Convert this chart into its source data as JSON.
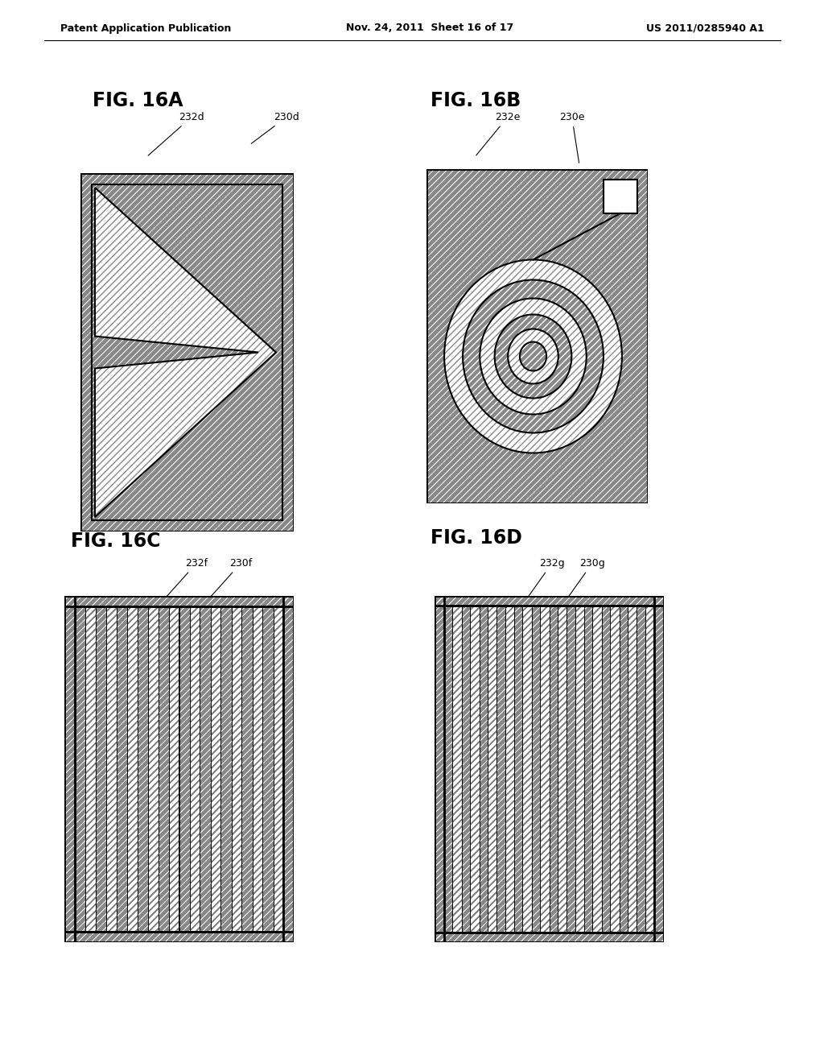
{
  "header_left": "Patent Application Publication",
  "header_mid": "Nov. 24, 2011  Sheet 16 of 17",
  "header_right": "US 2011/0285940 A1",
  "bg_color": "#ffffff",
  "dark_gray": "#888888",
  "fig16a_label": "FIG. 16A",
  "fig16b_label": "FIG. 16B",
  "fig16c_label": "FIG. 16C",
  "fig16d_label": "FIG. 16D",
  "ann_232d": "232d",
  "ann_230d": "230d",
  "ann_232e": "232e",
  "ann_230e": "230e",
  "ann_232f": "232f",
  "ann_230f": "230f",
  "ann_232g": "232g",
  "ann_230g": "230g"
}
